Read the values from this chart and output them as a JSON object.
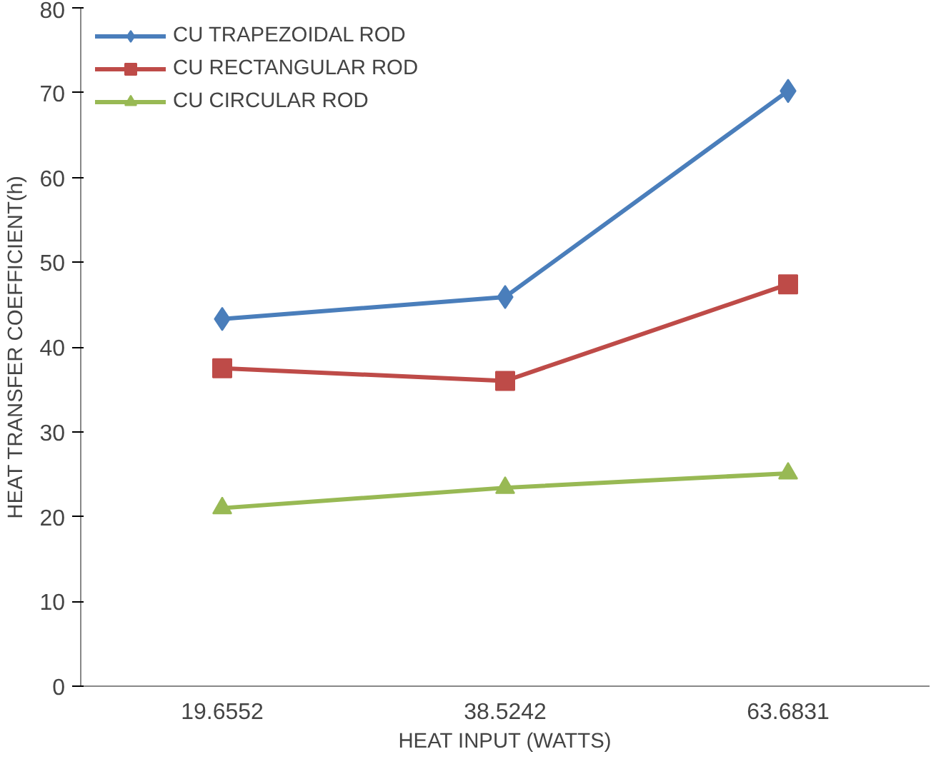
{
  "chart_data": {
    "type": "line",
    "xlabel": "HEAT INPUT (WATTS)",
    "ylabel": "HEAT TRANSFER COEFFICIENT(h)",
    "categories": [
      "19.6552",
      "38.5242",
      "63.6831"
    ],
    "series": [
      {
        "name": "CU TRAPEZOIDAL ROD",
        "color": "#4a7ebb",
        "marker": "diamond",
        "values": [
          43.3,
          45.9,
          70.2
        ]
      },
      {
        "name": "CU RECTANGULAR ROD",
        "color": "#be4b48",
        "marker": "square",
        "values": [
          37.5,
          36.0,
          47.4
        ]
      },
      {
        "name": "CU CIRCULAR ROD",
        "color": "#98b954",
        "marker": "triangle",
        "values": [
          21.0,
          23.4,
          25.1
        ]
      }
    ],
    "ylim": [
      0,
      80
    ],
    "yticks": [
      0,
      10,
      20,
      30,
      40,
      50,
      60,
      70,
      80
    ],
    "grid": false,
    "legend": "top left",
    "line_style": "solid"
  }
}
